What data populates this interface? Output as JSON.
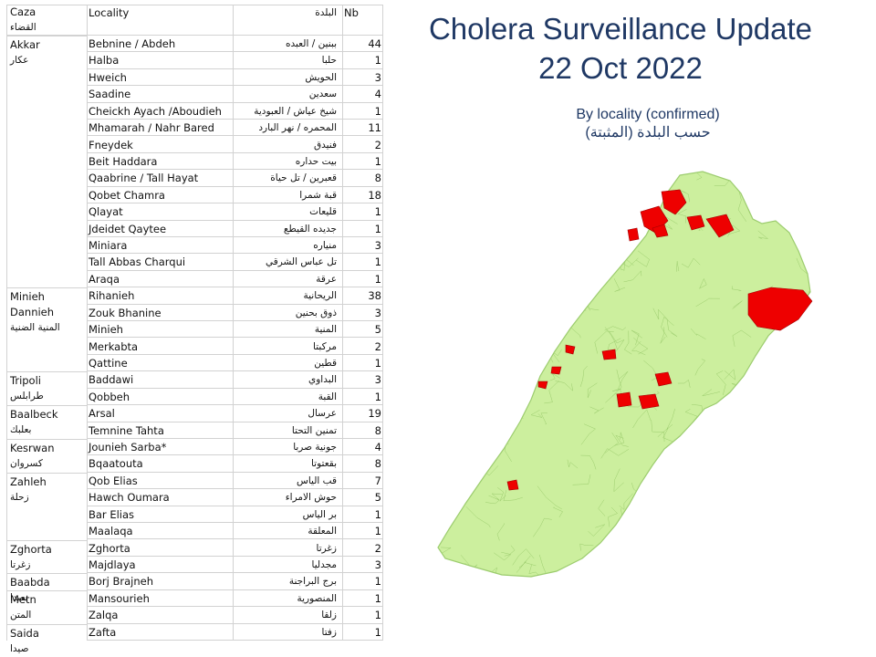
{
  "table": {
    "headers": {
      "caza": "Caza",
      "caza_ar": "القضاء",
      "locality": "Locality",
      "locality_ar": "البلدة",
      "nb": "Nb"
    },
    "groups": [
      {
        "caza": "Akkar",
        "caza_ar": "عكار",
        "rows": [
          {
            "locality": "Bebnine / Abdeh",
            "arabic": "ببنين / العبده",
            "nb": "44"
          },
          {
            "locality": "Halba",
            "arabic": "حلبا",
            "nb": "1"
          },
          {
            "locality": "Hweich",
            "arabic": "الحويش",
            "nb": "3"
          },
          {
            "locality": "Saadine",
            "arabic": "سعدين",
            "nb": "4"
          },
          {
            "locality": "Cheickh Ayach /Aboudieh",
            "arabic": "شيخ عياش / العبودية",
            "nb": "1"
          },
          {
            "locality": "Mhamarah / Nahr Bared",
            "arabic": "المحمره / نهر البارد",
            "nb": "11"
          },
          {
            "locality": "Fneydek",
            "arabic": "فنيدق",
            "nb": "2"
          },
          {
            "locality": "Beit Haddara",
            "arabic": "بيت حداره",
            "nb": "1"
          },
          {
            "locality": "Qaabrine / Tall Hayat",
            "arabic": "قعبرين / تل حياة",
            "nb": "8"
          },
          {
            "locality": "Qobet Chamra",
            "arabic": "قبة شمرا",
            "nb": "18"
          },
          {
            "locality": "Qlayat",
            "arabic": "قليعات",
            "nb": "1"
          },
          {
            "locality": "Jdeidet Qaytee",
            "arabic": "جديده القيطع",
            "nb": "1"
          },
          {
            "locality": "Miniara",
            "arabic": "منياره",
            "nb": "3"
          },
          {
            "locality": "Tall Abbas Charqui",
            "arabic": "تل عباس الشرقي",
            "nb": "1"
          },
          {
            "locality": "Araqa",
            "arabic": "عرقة",
            "nb": "1"
          }
        ]
      },
      {
        "caza": "Minieh Dannieh",
        "caza_ar": "المنية الضنية",
        "rows": [
          {
            "locality": "Rihanieh",
            "arabic": "الريحانية",
            "nb": "38"
          },
          {
            "locality": "Zouk Bhanine",
            "arabic": "ذوق بحنين",
            "nb": "3"
          },
          {
            "locality": "Minieh",
            "arabic": "المنية",
            "nb": "5"
          },
          {
            "locality": "Merkabta",
            "arabic": "مركبتا",
            "nb": "2"
          },
          {
            "locality": "Qattine",
            "arabic": "قطين",
            "nb": "1"
          }
        ]
      },
      {
        "caza": "Tripoli",
        "caza_ar": "طرابلس",
        "rows": [
          {
            "locality": "Baddawi",
            "arabic": "البداوي",
            "nb": "3"
          },
          {
            "locality": "Qobbeh",
            "arabic": "القبة",
            "nb": "1"
          }
        ]
      },
      {
        "caza": "Baalbeck",
        "caza_ar": "بعلبك",
        "rows": [
          {
            "locality": "Arsal",
            "arabic": "عرسال",
            "nb": "19"
          },
          {
            "locality": "Temnine Tahta",
            "arabic": "تمنين التحتا",
            "nb": "8"
          }
        ]
      },
      {
        "caza": "Kesrwan",
        "caza_ar": "كسروان",
        "rows": [
          {
            "locality": "Jounieh Sarba*",
            "arabic": "جونية صربا",
            "nb": "4"
          },
          {
            "locality": "Bqaatouta",
            "arabic": "بقعتوتا",
            "nb": "8"
          }
        ]
      },
      {
        "caza": "Zahleh",
        "caza_ar": "زحلة",
        "rows": [
          {
            "locality": "Qob Elias",
            "arabic": "قب الياس",
            "nb": "7"
          },
          {
            "locality": "Hawch Oumara",
            "arabic": "حوش الامراء",
            "nb": "5"
          },
          {
            "locality": "Bar Elias",
            "arabic": "بر الياس",
            "nb": "1"
          },
          {
            "locality": "Maalaqa",
            "arabic": "المعلقة",
            "nb": "1"
          }
        ]
      },
      {
        "caza": "Zghorta",
        "caza_ar": "زغرتا",
        "rows": [
          {
            "locality": "Zghorta",
            "arabic": "زغرتا",
            "nb": "2"
          },
          {
            "locality": "Majdlaya",
            "arabic": "مجدليا",
            "nb": "3"
          }
        ]
      },
      {
        "caza": "Baabda",
        "caza_ar": "بعبدا",
        "rows": [
          {
            "locality": "Borj Brajneh",
            "arabic": "برج البراجنة",
            "nb": "1"
          }
        ]
      },
      {
        "caza": "Metn",
        "caza_ar": "المتن",
        "rows": [
          {
            "locality": "Mansourieh",
            "arabic": "المنصورية",
            "nb": "1"
          },
          {
            "locality": "Zalqa",
            "arabic": "زلقا",
            "nb": "1"
          }
        ]
      },
      {
        "caza": "Saida",
        "caza_ar": "صيدا",
        "rows": [
          {
            "locality": "Zafta",
            "arabic": "زفتا",
            "nb": "1"
          }
        ]
      }
    ]
  },
  "title_line1": "Cholera Surveillance Update",
  "title_line2": "22 Oct 2022",
  "subtitle_en": "By locality (confirmed)",
  "subtitle_ar": "حسب البلدة (المثبتة)",
  "colors": {
    "land": "#ccef9e",
    "land_border": "#9ccc6e",
    "affected": "#ee0000",
    "title": "#1f3864"
  }
}
